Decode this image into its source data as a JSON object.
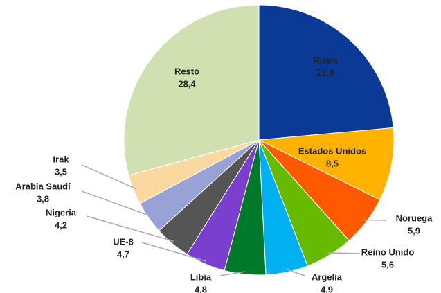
{
  "chart_data": {
    "type": "pie",
    "categories": [
      "Rusia",
      "Estados Unidos",
      "Noruega",
      "Reino Unido",
      "Argelia",
      "Libia",
      "UE-8",
      "Nigeria",
      "Arabia Saudí",
      "Irak",
      "Resto"
    ],
    "values": [
      22.9,
      8.5,
      5.9,
      5.6,
      4.9,
      4.8,
      4.7,
      4.2,
      3.8,
      3.5,
      28.4
    ],
    "value_labels": [
      "22,9",
      "8,5",
      "5,9",
      "5,6",
      "4,9",
      "4,8",
      "4,7",
      "4,2",
      "3,8",
      "3,5",
      "28,4"
    ],
    "colors": [
      "#0b3996",
      "#ffb300",
      "#ff5a00",
      "#66bb00",
      "#00b0f0",
      "#007a2a",
      "#7b3fcf",
      "#555555",
      "#98a2d6",
      "#f9d9a0",
      "#d0e0b0"
    ]
  }
}
